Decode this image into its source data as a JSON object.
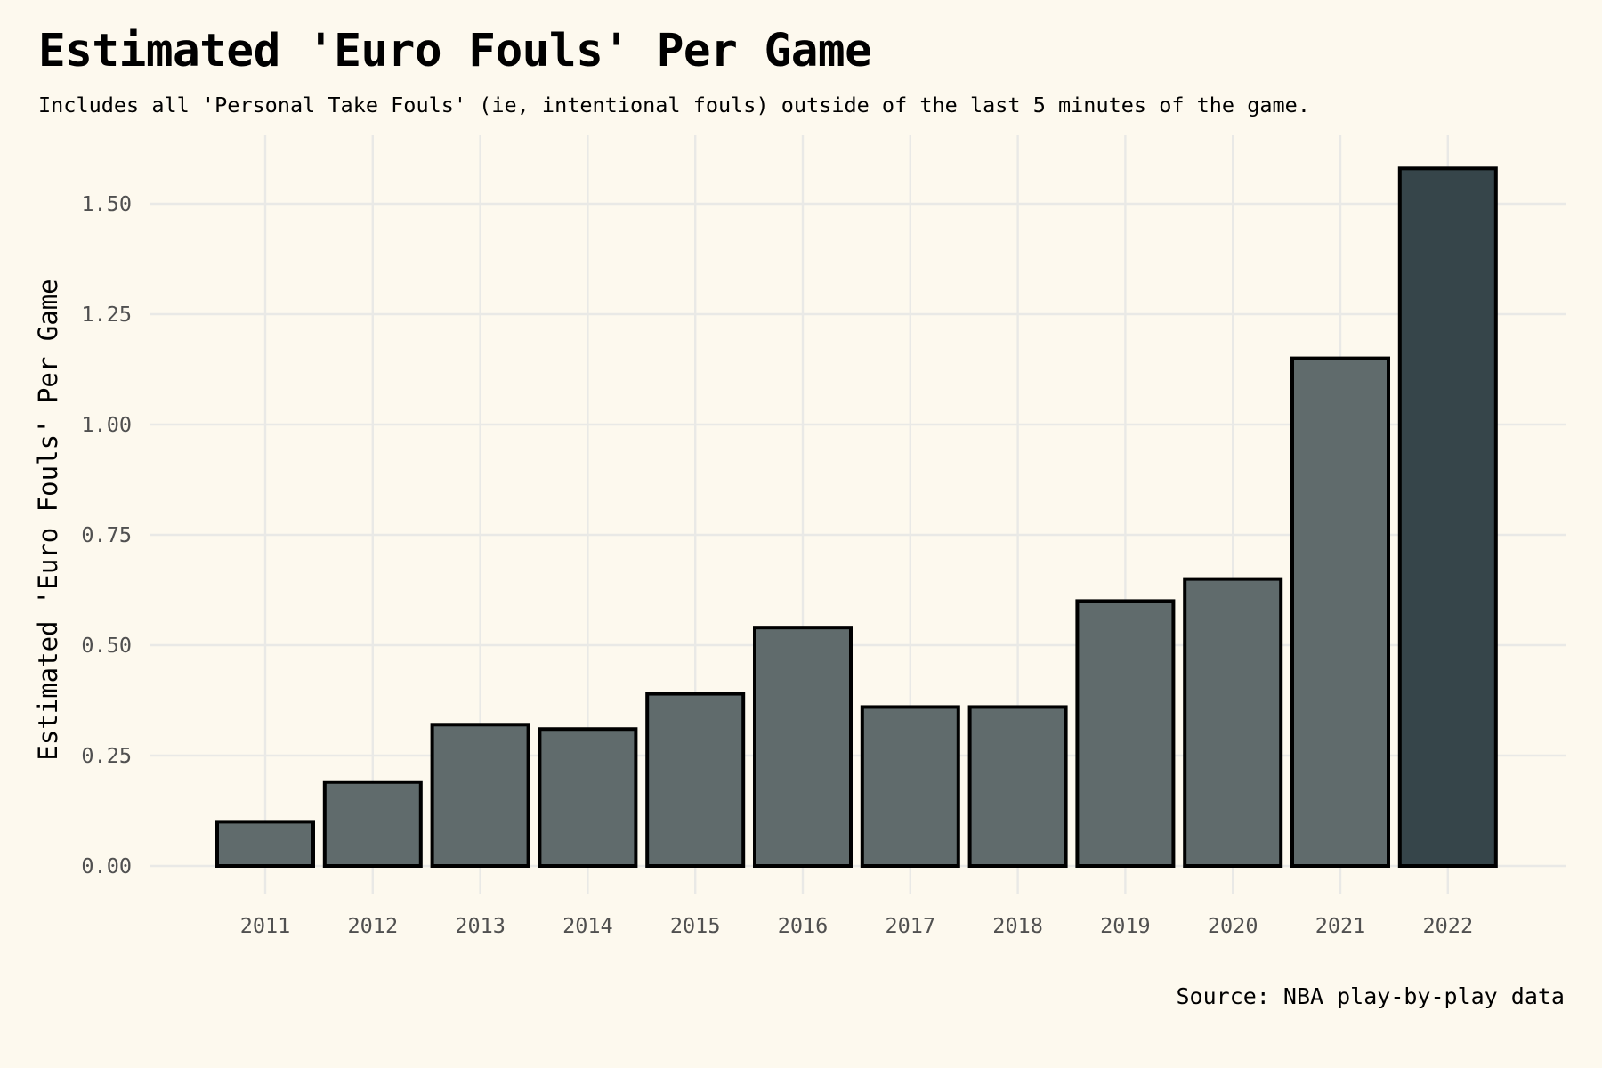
{
  "chart_data": {
    "type": "bar",
    "title": "Estimated 'Euro Fouls' Per Game",
    "subtitle": "Includes all 'Personal Take Fouls' (ie, intentional fouls) outside of the last 5 minutes of the game.",
    "caption": "Source: NBA play-by-play data",
    "xlabel": "",
    "ylabel": "Estimated 'Euro Fouls' Per Game",
    "categories": [
      "2011",
      "2012",
      "2013",
      "2014",
      "2015",
      "2016",
      "2017",
      "2018",
      "2019",
      "2020",
      "2021",
      "2022"
    ],
    "values": [
      0.1,
      0.19,
      0.32,
      0.31,
      0.39,
      0.54,
      0.36,
      0.36,
      0.6,
      0.65,
      1.15,
      1.58
    ],
    "ylim": [
      0,
      1.6
    ],
    "yticks": [
      "0.00",
      "0.25",
      "0.50",
      "0.75",
      "1.00",
      "1.25",
      "1.50"
    ],
    "ytick_values": [
      0,
      0.25,
      0.5,
      0.75,
      1.0,
      1.25,
      1.5
    ],
    "grid": true,
    "legend": "none",
    "bar_color": "#606b6c",
    "highlight_color": "#36454a",
    "highlight_category": "2022",
    "background_color": "#fdf9ee"
  }
}
